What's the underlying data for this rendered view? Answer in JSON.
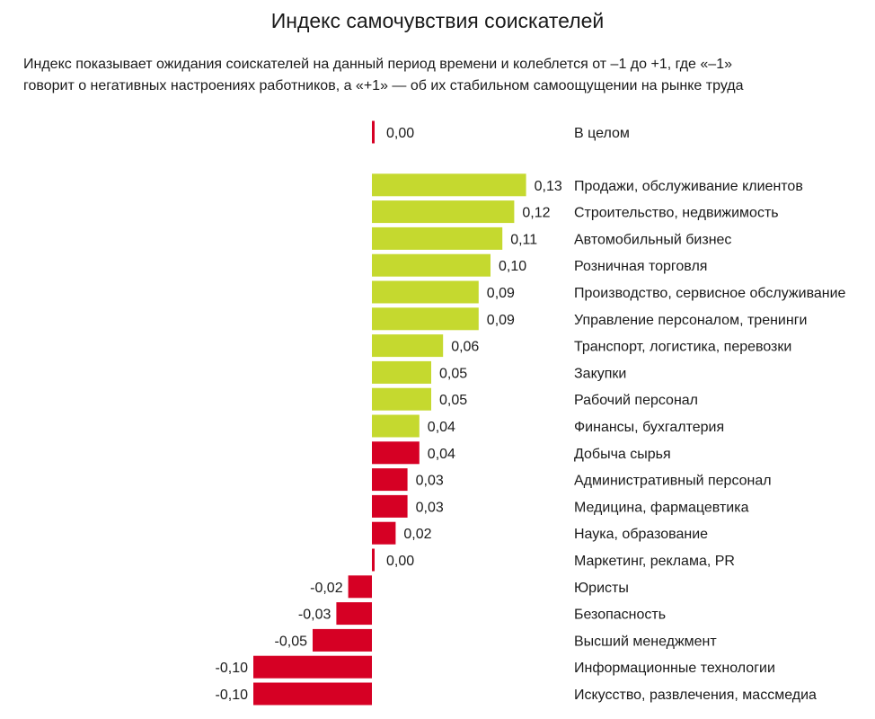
{
  "title": "Индекс самочувствия соискателей",
  "subtitle_lines": [
    "Индекс показывает ожидания соискателей на данный период времени и колеблется от –1 до +1, где «–1»",
    "говорит о негативных настроениях работников, а «+1» — об их стабильном самоощущении на рынке труда"
  ],
  "colors": {
    "positive": "#c5d92f",
    "negative": "#d60024"
  },
  "chart_data": {
    "type": "bar",
    "orientation": "horizontal",
    "title": "Индекс самочувствия соискателей",
    "xlim": [
      -1,
      1
    ],
    "grid": false,
    "legend": "none",
    "rows": [
      {
        "category": "В целом",
        "value": 0.0,
        "label": "0,00",
        "color": "negative",
        "group_gap_after": true
      },
      {
        "category": "Продажи, обслуживание клиентов",
        "value": 0.13,
        "label": "0,13",
        "color": "positive"
      },
      {
        "category": "Строительство, недвижимость",
        "value": 0.12,
        "label": "0,12",
        "color": "positive"
      },
      {
        "category": "Автомобильный бизнес",
        "value": 0.11,
        "label": "0,11",
        "color": "positive"
      },
      {
        "category": "Розничная торговля",
        "value": 0.1,
        "label": "0,10",
        "color": "positive"
      },
      {
        "category": "Производство, сервисное обслуживание",
        "value": 0.09,
        "label": "0,09",
        "color": "positive"
      },
      {
        "category": "Управление персоналом, тренинги",
        "value": 0.09,
        "label": "0,09",
        "color": "positive"
      },
      {
        "category": "Транспорт, логистика, перевозки",
        "value": 0.06,
        "label": "0,06",
        "color": "positive"
      },
      {
        "category": "Закупки",
        "value": 0.05,
        "label": "0,05",
        "color": "positive"
      },
      {
        "category": "Рабочий персонал",
        "value": 0.05,
        "label": "0,05",
        "color": "positive"
      },
      {
        "category": "Финансы, бухгалтерия",
        "value": 0.04,
        "label": "0,04",
        "color": "positive"
      },
      {
        "category": "Добыча сырья",
        "value": 0.04,
        "label": "0,04",
        "color": "negative"
      },
      {
        "category": "Административный персонал",
        "value": 0.03,
        "label": "0,03",
        "color": "negative"
      },
      {
        "category": "Медицина, фармацевтика",
        "value": 0.03,
        "label": "0,03",
        "color": "negative"
      },
      {
        "category": "Наука, образование",
        "value": 0.02,
        "label": "0,02",
        "color": "negative"
      },
      {
        "category": "Маркетинг, реклама, PR",
        "value": 0.0,
        "label": "0,00",
        "color": "negative"
      },
      {
        "category": "Юристы",
        "value": -0.02,
        "label": "-0,02",
        "color": "negative"
      },
      {
        "category": "Безопасность",
        "value": -0.03,
        "label": "-0,03",
        "color": "negative"
      },
      {
        "category": "Высший менеджмент",
        "value": -0.05,
        "label": "-0,05",
        "color": "negative"
      },
      {
        "category": "Информационные технологии",
        "value": -0.1,
        "label": "-0,10",
        "color": "negative"
      },
      {
        "category": "Искусство, развлечения, массмедиа",
        "value": -0.1,
        "label": "-0,10",
        "color": "negative"
      }
    ]
  }
}
